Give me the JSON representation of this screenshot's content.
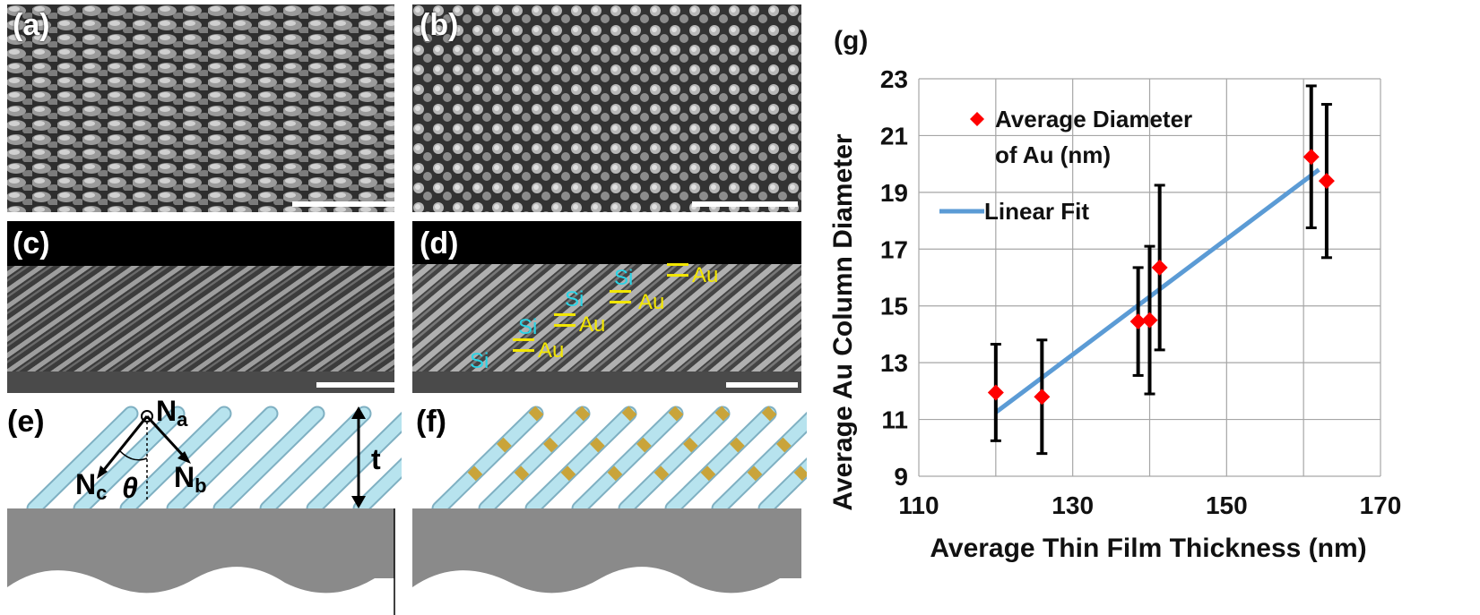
{
  "panels": {
    "a": {
      "label": "(a)"
    },
    "b": {
      "label": "(b)"
    },
    "c": {
      "label": "(c)"
    },
    "d": {
      "label": "(d)",
      "layers": [
        {
          "si": "Si",
          "au": "Au"
        },
        {
          "si": "Si",
          "au": "Au"
        },
        {
          "si": "Si",
          "au": "Au"
        },
        {
          "si": "Si",
          "au": "Au"
        }
      ]
    },
    "e": {
      "label": "(e)",
      "na": "N",
      "na_sub": "a",
      "nb": "N",
      "nb_sub": "b",
      "nc": "N",
      "nc_sub": "c",
      "theta": "θ",
      "t": "t"
    },
    "f": {
      "label": "(f)"
    }
  },
  "colors": {
    "rod": "#b7e3ee",
    "rod_edge": "#7fb0c2",
    "gold_band": "#c9a43a",
    "substrate": "#8a8a8a",
    "marker": "#ff0000",
    "fit_line": "#5b9bd5",
    "grid": "#a6a6a6"
  },
  "chart_data": {
    "type": "scatter",
    "panel_label": "(g)",
    "xlabel": "Average Thin Film Thickness (nm)",
    "ylabel": "Average Au Column Diameter",
    "xlim": [
      110,
      170
    ],
    "ylim": [
      9,
      23
    ],
    "xticks": [
      110,
      130,
      150,
      170
    ],
    "yticks": [
      9,
      11,
      13,
      15,
      17,
      19,
      21,
      23
    ],
    "grid": true,
    "legend_position": "top-left",
    "series": [
      {
        "name": "Average Diameter of Au (nm)",
        "name_lines": [
          "Average Diameter",
          "of Au (nm)"
        ],
        "marker": "diamond",
        "x": [
          120,
          126,
          138.5,
          140,
          141.3,
          161,
          163
        ],
        "y": [
          11.95,
          11.8,
          14.45,
          14.5,
          16.35,
          20.25,
          19.4
        ],
        "y_err": [
          1.7,
          2.0,
          1.9,
          2.6,
          2.9,
          2.5,
          2.7
        ]
      },
      {
        "name": "Linear Fit",
        "type": "line",
        "x": [
          120,
          162
        ],
        "y": [
          11.25,
          19.8
        ]
      }
    ]
  }
}
